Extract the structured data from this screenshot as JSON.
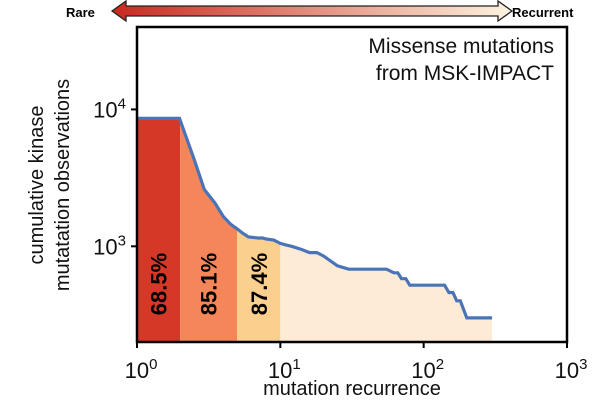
{
  "header": {
    "left_label": "Rare",
    "right_label": "Recurrent",
    "gradient_from": "#c8281e",
    "gradient_to": "#fdf4df"
  },
  "chart_data": {
    "type": "area",
    "title": "Missense mutations",
    "subtitle": "from MSK-IMPACT",
    "xlabel": "mutation recurrence",
    "ylabel_line1": "cumulative kinase",
    "ylabel_line2": "mutatation observations",
    "xscale": "log",
    "yscale": "log",
    "xlim": [
      1,
      1000
    ],
    "ylim": [
      200,
      40000
    ],
    "x_ticks": [
      {
        "base": "10",
        "exp": "0",
        "value": 1
      },
      {
        "base": "10",
        "exp": "1",
        "value": 10
      },
      {
        "base": "10",
        "exp": "2",
        "value": 100
      },
      {
        "base": "10",
        "exp": "3",
        "value": 1000
      }
    ],
    "y_ticks": [
      {
        "base": "10",
        "exp": "4",
        "value": 10000
      },
      {
        "base": "10",
        "exp": "3",
        "value": 1000
      }
    ],
    "grid": false,
    "series": [
      {
        "color": "#4a74b8",
        "x": [
          1,
          1.98,
          2.5,
          2.95,
          3.5,
          4.0,
          4.5,
          5.0,
          5.5,
          6,
          6.5,
          7,
          7.5,
          8,
          8.5,
          9,
          10,
          11,
          12,
          14,
          16,
          18,
          20,
          25,
          30,
          35,
          42,
          48,
          55,
          62,
          66,
          70,
          75,
          80,
          90,
          100,
          110,
          120,
          130,
          140,
          150,
          160,
          170,
          180,
          200,
          220,
          250,
          300
        ],
        "y": [
          8600,
          8600,
          4350,
          2600,
          2070,
          1650,
          1450,
          1340,
          1240,
          1170,
          1160,
          1150,
          1150,
          1130,
          1120,
          1110,
          1050,
          1020,
          1000,
          950,
          900,
          900,
          850,
          720,
          680,
          680,
          680,
          680,
          680,
          640,
          640,
          580,
          580,
          520,
          520,
          520,
          520,
          520,
          520,
          520,
          460,
          460,
          400,
          400,
          300,
          300,
          300,
          300
        ]
      }
    ],
    "regions": [
      {
        "x_start": 1,
        "x_end": 2,
        "label": "68.5%",
        "color": "#d63828"
      },
      {
        "x_start": 2,
        "x_end": 5,
        "label": "85.1%",
        "color": "#f4865a"
      },
      {
        "x_start": 5,
        "x_end": 10,
        "label": "87.4%",
        "color": "#fbcf8e"
      },
      {
        "x_start": 10,
        "x_end": 300,
        "label": "",
        "color": "#fdebd5"
      }
    ]
  }
}
